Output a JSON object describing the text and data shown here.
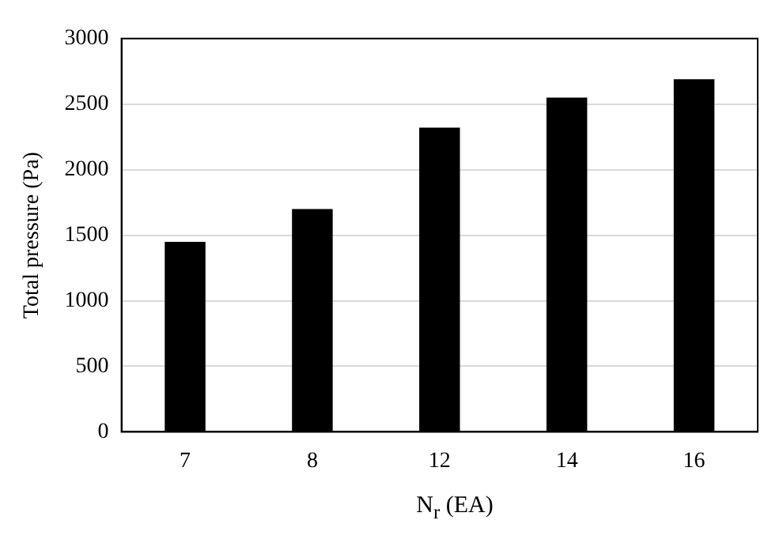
{
  "chart_data": {
    "type": "bar",
    "xlabel": "N$_{r}$ (EA)",
    "ylabel": "Total pressure (Pa)",
    "categories": [
      "7",
      "8",
      "12",
      "14",
      "16"
    ],
    "values": [
      1450,
      1700,
      2320,
      2550,
      2690
    ],
    "color": "#000000",
    "ylim": [
      0,
      3000
    ],
    "yticks": [
      0,
      500,
      1000,
      1500,
      2000,
      2500,
      3000
    ],
    "grid": "y",
    "legend": false
  }
}
